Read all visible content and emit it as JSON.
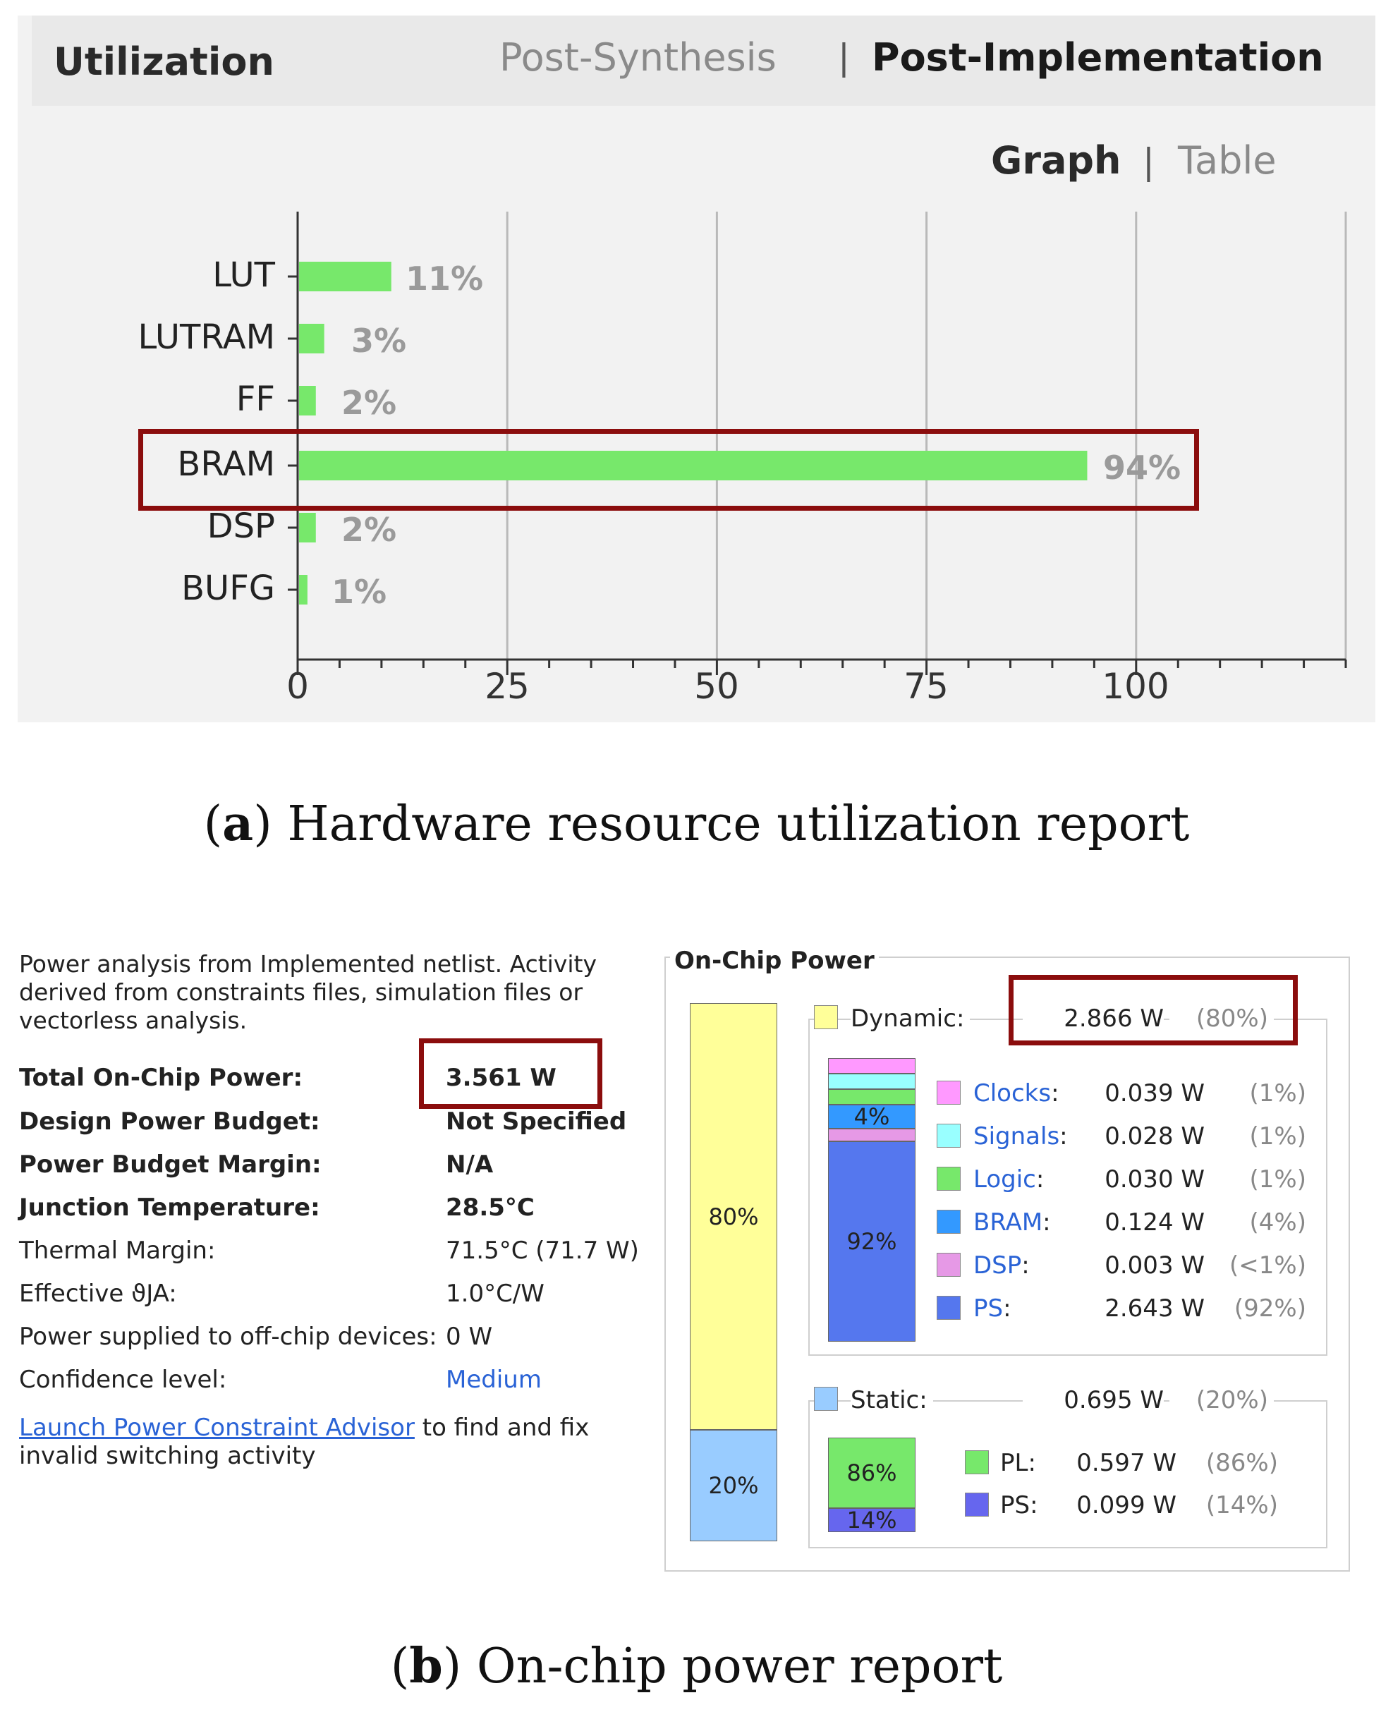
{
  "utilization": {
    "title": "Utilization",
    "tabs": [
      {
        "label": "Post-Synthesis",
        "active": false
      },
      {
        "label": "Post-Implementation",
        "active": true
      }
    ],
    "tab_separator": "|",
    "views": [
      {
        "label": "Graph",
        "active": true
      },
      {
        "label": "Table",
        "active": false
      }
    ],
    "view_separator": "|",
    "bar_color": "#77e86b",
    "highlight_color": "#8b0d0d",
    "chart_data": {
      "type": "bar",
      "orientation": "horizontal",
      "categories": [
        "LUT",
        "LUTRAM",
        "FF",
        "BRAM",
        "DSP",
        "BUFG"
      ],
      "values": [
        11,
        3,
        2,
        94,
        2,
        1
      ],
      "value_labels": [
        "11%",
        "3%",
        "2%",
        "94%",
        "2%",
        "1%"
      ],
      "xticks": [
        0,
        25,
        50,
        75,
        100
      ],
      "xtick_labels": [
        "0",
        "25",
        "50",
        "75",
        "100"
      ],
      "xlim": [
        0,
        125
      ],
      "grid": true,
      "highlighted_category": "BRAM"
    }
  },
  "caption_a": {
    "letter": "a",
    "text": "Hardware resource utilization report"
  },
  "power_summary": {
    "intro": "Power analysis from Implemented netlist. Activity derived from constraints files, simulation files or vectorless analysis.",
    "rows": [
      {
        "label": "Total On-Chip Power:",
        "value": "3.561 W",
        "bold": true
      },
      {
        "label": "Design Power Budget:",
        "value": "Not Specified",
        "bold": true
      },
      {
        "label": "Power Budget Margin:",
        "value": "N/A",
        "bold": true
      },
      {
        "label": "Junction Temperature:",
        "value": "28.5°C",
        "bold": true
      },
      {
        "label": "Thermal Margin:",
        "value": "71.5°C (71.7 W)",
        "bold": false
      },
      {
        "label": "Effective ϑJA:",
        "value": "1.0°C/W",
        "bold": false
      },
      {
        "label": "Power supplied to off-chip devices:",
        "value": "0 W",
        "bold": false
      },
      {
        "label": "Confidence level:",
        "value": "Medium",
        "bold": false,
        "link": true
      }
    ],
    "advisor_link": "Launch Power Constraint Advisor",
    "advisor_text1": "to find and fix",
    "advisor_text2": "invalid switching activity"
  },
  "on_chip_power": {
    "title": "On-Chip Power",
    "dynamic": {
      "label": "Dynamic:",
      "value": "2.866 W",
      "pct": "(80%)",
      "bar_pct": "80%",
      "share": 80,
      "color": "#ffff99"
    },
    "static": {
      "label": "Static:",
      "value": "0.695 W",
      "pct": "(20%)",
      "bar_pct": "20%",
      "share": 20,
      "color": "#99ccff"
    },
    "dynamic_items": [
      {
        "name": "Clocks",
        "value": "0.039 W",
        "pct": "(1%)",
        "color": "#ff99ff",
        "share": 1
      },
      {
        "name": "Signals",
        "value": "0.028 W",
        "pct": "(1%)",
        "color": "#99ffff",
        "share": 1
      },
      {
        "name": "Logic",
        "value": "0.030 W",
        "pct": "(1%)",
        "color": "#77e86b",
        "share": 1
      },
      {
        "name": "BRAM",
        "value": "0.124 W",
        "pct": "(4%)",
        "color": "#3399ff",
        "share": 4
      },
      {
        "name": "DSP",
        "value": "0.003 W",
        "pct": "(<1%)",
        "color": "#e699e6",
        "share": 1
      },
      {
        "name": "PS",
        "value": "2.643 W",
        "pct": "(92%)",
        "color": "#5577ee",
        "share": 92
      }
    ],
    "dynamic_bar_labels": {
      "BRAM": "4%",
      "PS": "92%"
    },
    "static_items": [
      {
        "name": "PL",
        "value": "0.597 W",
        "pct": "(86%)",
        "color": "#77e86b",
        "share": 86,
        "bar_pct": "86%"
      },
      {
        "name": "PS",
        "value": "0.099 W",
        "pct": "(14%)",
        "color": "#6666ee",
        "share": 14,
        "bar_pct": "14%"
      }
    ]
  },
  "caption_b": {
    "letter": "b",
    "text": "On-chip power report"
  }
}
